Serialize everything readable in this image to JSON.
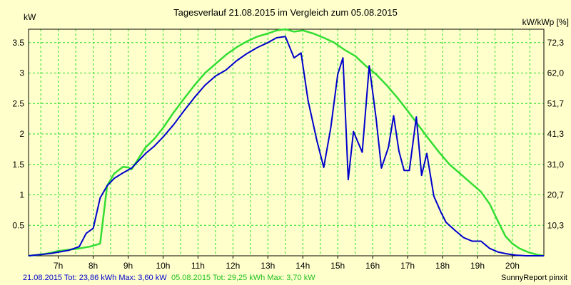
{
  "chart_data": {
    "type": "line",
    "title": "Tagesverlauf 21.08.2015 im Vergleich zum 05.08.2015",
    "ylabel_left": "kW",
    "ylabel_right": "kW/kWp [%]",
    "x_ticks": [
      "7h",
      "8h",
      "9h",
      "10h",
      "11h",
      "12h",
      "13h",
      "14h",
      "15h",
      "16h",
      "17h",
      "18h",
      "19h",
      "20h"
    ],
    "y_ticks": [
      "0.5",
      "1",
      "1.5",
      "2",
      "2.5",
      "3",
      "3.5"
    ],
    "y2_ticks": [
      "10,3",
      "20,7",
      "31,0",
      "41,3",
      "51,7",
      "62,0",
      "72,3"
    ],
    "xlim": [
      6.15,
      20.9
    ],
    "ylim": [
      0,
      3.72
    ],
    "grid": true,
    "series": [
      {
        "name": "21.08.2015",
        "color": "#0000cc",
        "x": [
          6.15,
          6.5,
          6.8,
          7.0,
          7.3,
          7.6,
          7.8,
          8.0,
          8.2,
          8.4,
          8.6,
          8.85,
          9.1,
          9.3,
          9.5,
          9.75,
          10.0,
          10.3,
          10.6,
          10.9,
          11.2,
          11.5,
          11.8,
          12.1,
          12.4,
          12.7,
          13.0,
          13.25,
          13.5,
          13.75,
          13.95,
          14.15,
          14.4,
          14.6,
          14.8,
          15.0,
          15.15,
          15.3,
          15.45,
          15.7,
          15.9,
          16.1,
          16.25,
          16.45,
          16.6,
          16.75,
          16.9,
          17.05,
          17.25,
          17.4,
          17.55,
          17.75,
          17.95,
          18.1,
          18.35,
          18.6,
          18.85,
          19.1,
          19.35,
          19.6,
          19.85,
          20.1,
          20.4,
          20.7,
          20.9
        ],
        "y": [
          0,
          0.02,
          0.04,
          0.06,
          0.09,
          0.15,
          0.37,
          0.45,
          0.95,
          1.15,
          1.27,
          1.36,
          1.44,
          1.56,
          1.68,
          1.8,
          1.95,
          2.15,
          2.38,
          2.6,
          2.8,
          2.95,
          3.05,
          3.2,
          3.32,
          3.42,
          3.5,
          3.58,
          3.6,
          3.25,
          3.33,
          2.55,
          1.9,
          1.45,
          2.1,
          2.98,
          3.25,
          1.25,
          2.04,
          1.7,
          3.12,
          2.25,
          1.44,
          1.78,
          2.3,
          1.72,
          1.4,
          1.4,
          2.28,
          1.32,
          1.68,
          0.98,
          0.72,
          0.55,
          0.42,
          0.3,
          0.24,
          0.24,
          0.12,
          0.06,
          0.03,
          0.01,
          0.0,
          0.0,
          0
        ]
      },
      {
        "name": "05.08.2015",
        "color": "#33dd33",
        "x": [
          6.15,
          6.5,
          6.8,
          7.0,
          7.3,
          7.6,
          7.9,
          8.2,
          8.4,
          8.6,
          8.85,
          9.0,
          9.1,
          9.3,
          9.5,
          9.75,
          10.0,
          10.3,
          10.6,
          10.9,
          11.2,
          11.5,
          11.8,
          12.1,
          12.4,
          12.7,
          13.0,
          13.25,
          13.5,
          13.75,
          14.0,
          14.3,
          14.6,
          14.9,
          15.2,
          15.5,
          15.8,
          16.1,
          16.4,
          16.7,
          17.0,
          17.3,
          17.6,
          17.9,
          18.2,
          18.5,
          18.8,
          19.1,
          19.35,
          19.6,
          19.8,
          20.0,
          20.2,
          20.45,
          20.7,
          20.9
        ],
        "y": [
          0,
          0.02,
          0.05,
          0.08,
          0.1,
          0.12,
          0.15,
          0.2,
          1.15,
          1.35,
          1.46,
          1.45,
          1.42,
          1.6,
          1.78,
          1.92,
          2.1,
          2.35,
          2.58,
          2.8,
          3.0,
          3.15,
          3.3,
          3.42,
          3.52,
          3.6,
          3.65,
          3.7,
          3.72,
          3.68,
          3.7,
          3.65,
          3.58,
          3.5,
          3.38,
          3.28,
          3.12,
          2.98,
          2.8,
          2.6,
          2.38,
          2.15,
          1.92,
          1.7,
          1.5,
          1.35,
          1.2,
          1.05,
          0.85,
          0.55,
          0.32,
          0.2,
          0.12,
          0.06,
          0.02,
          0
        ]
      }
    ]
  },
  "footer": {
    "legend1_text": "21.08.2015 Tot: 23,86 kWh Max: 3,60 kW",
    "legend2_text": "05.08.2015 Tot: 29,25 kWh Max: 3,70 kW",
    "credit": "SunnyReport pinxit"
  }
}
